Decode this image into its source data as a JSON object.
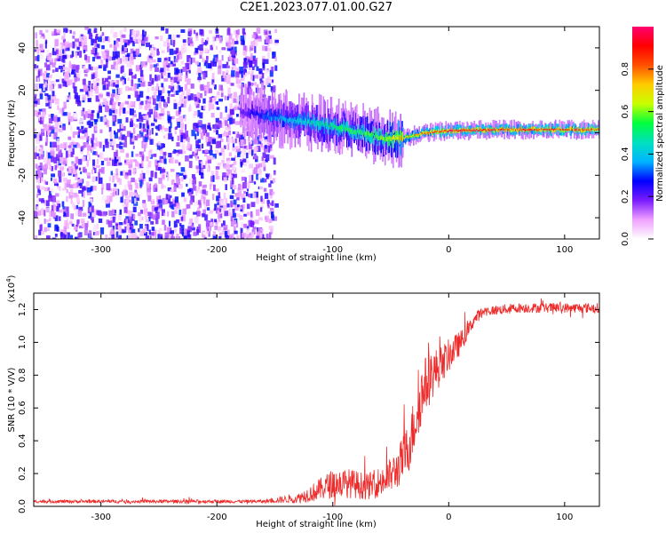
{
  "page": {
    "title": "C2E1.2023.077.01.00.G27"
  },
  "colors": {
    "snr_line": "#ee2a2a",
    "colorbar_stops": [
      "#ffffff",
      "#f0a0ff",
      "#7a1bff",
      "#0000ff",
      "#00b4ff",
      "#00e0c0",
      "#00ff3c",
      "#c8ff00",
      "#ffcc00",
      "#ff5000",
      "#ff0000",
      "#ff0070"
    ]
  },
  "chart_data": [
    {
      "type": "heatmap",
      "title": "",
      "xlabel": "Height of straight line (km)",
      "ylabel": "Frequency (Hz)",
      "xlim": [
        -358,
        130
      ],
      "ylim": [
        -50,
        50
      ],
      "x_ticks": [
        -300,
        -200,
        -100,
        0,
        100
      ],
      "x_tick_labels": [
        "-300",
        "-200",
        "-100",
        "0",
        "100"
      ],
      "y_ticks": [
        -40,
        -20,
        0,
        20,
        40
      ],
      "y_tick_labels": [
        "-40",
        "-20",
        "0",
        "20",
        "40"
      ],
      "colorbar": {
        "label": "Normalized spectral amplitude",
        "range": [
          0,
          1
        ],
        "ticks": [
          0.0,
          0.2,
          0.4,
          0.6,
          0.8
        ],
        "tick_labels": [
          "0.0",
          "0.2",
          "0.4",
          "0.6",
          "0.8"
        ]
      },
      "features": {
        "noise_region_x": [
          -358,
          -150
        ],
        "noise_amplitude": [
          0.05,
          0.3
        ],
        "ridge": [
          {
            "x": -180,
            "y": 10,
            "amp": 0.2
          },
          {
            "x": -150,
            "y": 7,
            "amp": 0.35
          },
          {
            "x": -120,
            "y": 5,
            "amp": 0.45
          },
          {
            "x": -90,
            "y": 2,
            "amp": 0.5
          },
          {
            "x": -60,
            "y": -2,
            "amp": 0.55
          },
          {
            "x": -45,
            "y": -3,
            "amp": 0.7
          },
          {
            "x": -20,
            "y": 0,
            "amp": 0.8
          },
          {
            "x": 0,
            "y": 1,
            "amp": 0.9
          },
          {
            "x": 50,
            "y": 1.5,
            "amp": 0.85
          },
          {
            "x": 100,
            "y": 1.5,
            "amp": 0.85
          },
          {
            "x": 130,
            "y": 1.5,
            "amp": 0.85
          }
        ],
        "grid": false
      }
    },
    {
      "type": "line",
      "title": "",
      "xlabel": "Height of straight line (km)",
      "ylabel": "SNR (10 * V/V)",
      "y_multiplier_label": "(x10",
      "y_multiplier_exp": "4",
      "y_multiplier_close": ")",
      "xlim": [
        -358,
        130
      ],
      "ylim": [
        0,
        1.3
      ],
      "x_ticks": [
        -300,
        -200,
        -100,
        0,
        100
      ],
      "x_tick_labels": [
        "-300",
        "-200",
        "-100",
        "0",
        "100"
      ],
      "y_ticks": [
        0.0,
        0.2,
        0.4,
        0.6,
        0.8,
        1.0,
        1.2
      ],
      "y_tick_labels": [
        "0.0",
        "0.2",
        "0.4",
        "0.6",
        "0.8",
        "1.0",
        "1.2"
      ],
      "series": [
        {
          "x": [
            -358,
            -300,
            -250,
            -200,
            -160,
            -130,
            -115,
            -100,
            -85,
            -70,
            -55,
            -45,
            -35,
            -28,
            -22,
            -15,
            -8,
            0,
            8,
            15,
            22,
            30,
            45,
            60,
            80,
            100,
            120,
            130
          ],
          "y": [
            0.03,
            0.03,
            0.03,
            0.03,
            0.03,
            0.05,
            0.09,
            0.14,
            0.14,
            0.12,
            0.16,
            0.22,
            0.35,
            0.55,
            0.72,
            0.8,
            0.85,
            0.92,
            0.98,
            1.05,
            1.14,
            1.19,
            1.2,
            1.21,
            1.21,
            1.21,
            1.21,
            1.21
          ],
          "noise": [
            0.01,
            0.01,
            0.01,
            0.01,
            0.01,
            0.03,
            0.06,
            0.09,
            0.09,
            0.08,
            0.1,
            0.12,
            0.16,
            0.18,
            0.18,
            0.16,
            0.12,
            0.1,
            0.08,
            0.05,
            0.04,
            0.03,
            0.03,
            0.03,
            0.03,
            0.03,
            0.03,
            0.03
          ]
        }
      ],
      "grid": false
    }
  ]
}
